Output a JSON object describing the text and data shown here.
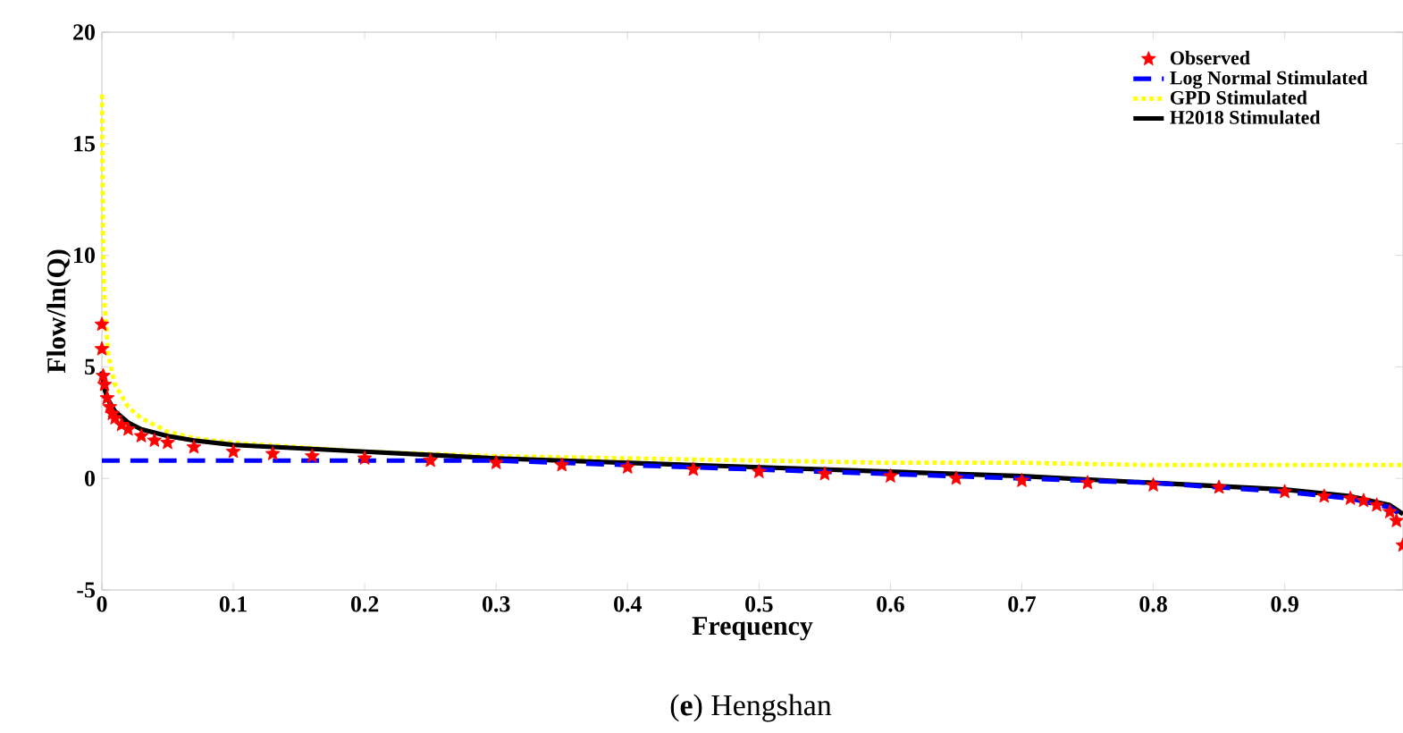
{
  "chart_data": {
    "type": "line",
    "xlabel": "Frequency",
    "ylabel": "Flow/ln(Q)",
    "annotations": [
      "(**e**) Hengshan"
    ],
    "xlim": [
      0,
      0.99
    ],
    "ylim": [
      -5,
      20
    ],
    "xticks": [
      0,
      0.1,
      0.2,
      0.3,
      0.4,
      0.5,
      0.6,
      0.7,
      0.8,
      0.9
    ],
    "yticks": [
      -5,
      0,
      5,
      10,
      15,
      20
    ],
    "grid": false,
    "legend": "top right",
    "series": [
      {
        "name": "Observed",
        "type": "scatter",
        "marker": "star",
        "color": "#ff0000",
        "x": [
          0,
          0,
          0.001,
          0.002,
          0.004,
          0.006,
          0.008,
          0.01,
          0.015,
          0.02,
          0.03,
          0.04,
          0.05,
          0.07,
          0.1,
          0.13,
          0.16,
          0.2,
          0.25,
          0.3,
          0.35,
          0.4,
          0.45,
          0.5,
          0.55,
          0.6,
          0.65,
          0.7,
          0.75,
          0.8,
          0.85,
          0.9,
          0.93,
          0.95,
          0.96,
          0.97,
          0.98,
          0.985,
          0.99
        ],
        "values": [
          6.9,
          5.8,
          4.6,
          4.2,
          3.6,
          3.2,
          2.9,
          2.7,
          2.4,
          2.2,
          1.9,
          1.7,
          1.6,
          1.4,
          1.2,
          1.1,
          1.0,
          0.9,
          0.8,
          0.7,
          0.6,
          0.5,
          0.4,
          0.3,
          0.2,
          0.1,
          0.0,
          -0.1,
          -0.2,
          -0.3,
          -0.4,
          -0.6,
          -0.8,
          -0.9,
          -1.0,
          -1.2,
          -1.5,
          -1.9,
          -3.0
        ]
      },
      {
        "name": "Log Normal Stimulated",
        "line_style": "dashed",
        "color": "#0000ff",
        "x": [
          0,
          0.1,
          0.2,
          0.3,
          0.35,
          0.4,
          0.5,
          0.6,
          0.7,
          0.8,
          0.9,
          0.95,
          0.98,
          0.99
        ],
        "values": [
          0.8,
          0.8,
          0.8,
          0.8,
          0.7,
          0.6,
          0.4,
          0.2,
          0.0,
          -0.2,
          -0.6,
          -0.9,
          -1.3,
          -1.7
        ]
      },
      {
        "name": "GPD Stimulated",
        "line_style": "dotted",
        "color": "#ffff00",
        "x": [
          0,
          0.001,
          0.002,
          0.005,
          0.01,
          0.02,
          0.03,
          0.05,
          0.07,
          0.1,
          0.2,
          0.3,
          0.4,
          0.5,
          0.6,
          0.7,
          0.8,
          0.9,
          0.99
        ],
        "values": [
          17.2,
          10,
          7.8,
          5.5,
          4.2,
          3.2,
          2.7,
          2.1,
          1.8,
          1.6,
          1.2,
          1.0,
          0.9,
          0.8,
          0.7,
          0.7,
          0.6,
          0.6,
          0.6
        ]
      },
      {
        "name": "H2018 Stimulated",
        "line_style": "solid",
        "color": "#000000",
        "x": [
          0,
          0.002,
          0.005,
          0.01,
          0.02,
          0.03,
          0.05,
          0.07,
          0.1,
          0.2,
          0.3,
          0.4,
          0.5,
          0.6,
          0.7,
          0.8,
          0.9,
          0.95,
          0.98,
          0.99
        ],
        "values": [
          4.8,
          4.0,
          3.5,
          3.0,
          2.5,
          2.2,
          1.9,
          1.7,
          1.5,
          1.2,
          0.9,
          0.7,
          0.5,
          0.3,
          0.1,
          -0.2,
          -0.5,
          -0.8,
          -1.2,
          -1.6
        ]
      }
    ]
  }
}
